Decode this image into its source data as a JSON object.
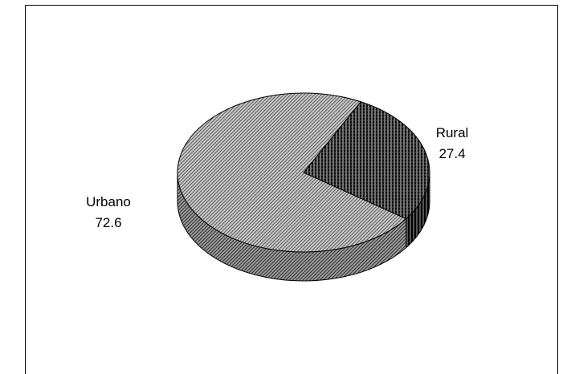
{
  "chart_data": {
    "type": "pie",
    "style": "3d-exploded-hatched",
    "title": "",
    "slices": [
      {
        "label": "Urbano",
        "value": 72.6,
        "value_label": "72.6",
        "pattern": "diagonal-hatch"
      },
      {
        "label": "Rural",
        "value": 27.4,
        "value_label": "27.4",
        "pattern": "vertical-hatch"
      }
    ]
  }
}
